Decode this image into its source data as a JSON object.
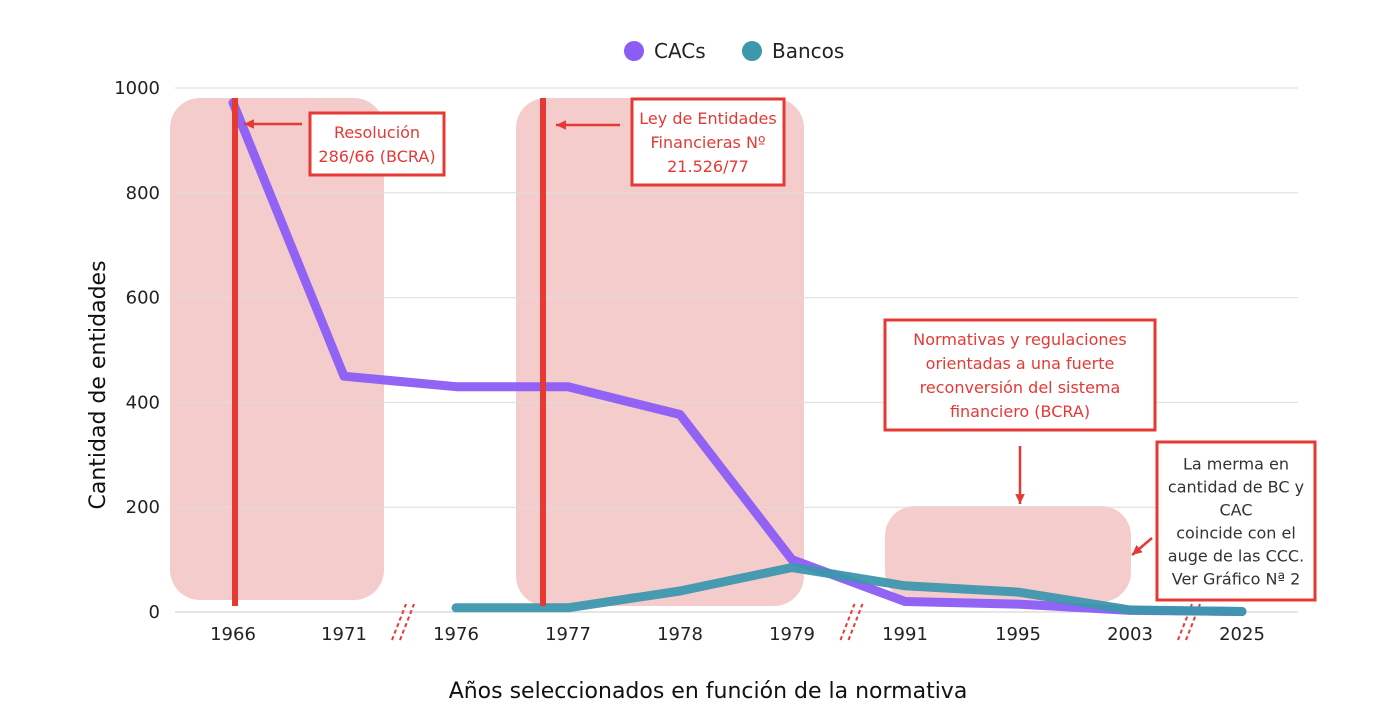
{
  "chart_data": {
    "type": "line",
    "title": "",
    "xlabel": "Años seleccionados en función de la normativa",
    "ylabel": "Cantidad de entidades",
    "categories": [
      "1966",
      "1971",
      "1976",
      "1977",
      "1978",
      "1979",
      "1991",
      "1995",
      "2003",
      "2025"
    ],
    "ylim": [
      0,
      1000
    ],
    "yticks": [
      "0",
      "200",
      "400",
      "600",
      "800",
      "1000"
    ],
    "grid": true,
    "legend": "top-center",
    "series": [
      {
        "name": "CACs",
        "color": "#8b5cf6",
        "values": [
          972,
          450,
          430,
          430,
          377,
          100,
          20,
          15,
          3,
          1
        ]
      },
      {
        "name": "Bancos",
        "color": "#3d97ad",
        "values": [
          null,
          null,
          8,
          8,
          40,
          85,
          50,
          38,
          4,
          1
        ]
      }
    ],
    "axis_breaks_after": [
      "1971",
      "1979",
      "2003"
    ],
    "annotations": {
      "resolucion": {
        "lines": [
          "Resolución",
          "286/66 (BCRA)"
        ]
      },
      "ley": {
        "lines": [
          "Ley de Entidades",
          "Financieras Nº",
          "21.526/77"
        ]
      },
      "normativas": {
        "lines": [
          "Normativas y regulaciones",
          "orientadas a una fuerte",
          "reconversión del sistema",
          "financiero (BCRA)"
        ]
      },
      "merma": {
        "lines": [
          "La merma en",
          "cantidad de BC y",
          "CAC",
          "coincide con el",
          "auge de las CCC.",
          "Ver Gráfico Nª 2"
        ]
      }
    },
    "colors": {
      "highlight": "#f5cccc",
      "marker": "#e53935",
      "grid": "#dddddd",
      "axis": "#cccccc"
    }
  }
}
